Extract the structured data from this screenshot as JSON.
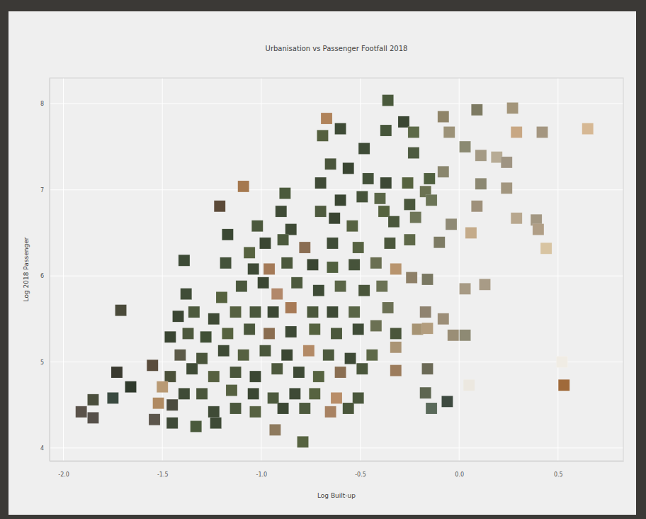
{
  "chart_data": {
    "type": "scatter",
    "title": "Urbanisation vs Passenger Footfall 2018",
    "x_label": "Log Built-up",
    "y_label": "Log 2018 Passenger",
    "x": [
      -0.36,
      -0.67,
      -0.6,
      -0.69,
      -0.37,
      -0.28,
      -0.23,
      -0.08,
      0.09,
      0.27,
      -0.05,
      0.03,
      0.29,
      0.42,
      0.65,
      -0.48,
      -0.23,
      0.11,
      0.19,
      0.24,
      -0.65,
      -0.56,
      -0.15,
      -0.08,
      -0.46,
      -0.37,
      -0.26,
      -0.7,
      -1.09,
      -0.88,
      -0.6,
      -0.49,
      -0.4,
      -0.17,
      0.11,
      0.24,
      -1.21,
      -0.9,
      -0.7,
      -0.63,
      -0.38,
      -0.25,
      -0.14,
      0.09,
      0.29,
      0.39,
      -0.04,
      0.06,
      0.4,
      -1.17,
      -1.02,
      -0.85,
      -0.54,
      -0.33,
      -0.22,
      0.44,
      -1.39,
      -1.18,
      -1.06,
      -0.98,
      -0.89,
      -0.78,
      -0.64,
      -0.51,
      -0.35,
      -0.25,
      -0.1,
      -1.04,
      -0.96,
      -0.87,
      -0.74,
      -0.64,
      -0.53,
      -0.42,
      -0.32,
      -0.24,
      -0.16,
      0.03,
      0.13,
      -1.71,
      -1.38,
      -1.2,
      -1.1,
      -0.99,
      -0.92,
      -0.82,
      -0.71,
      -0.6,
      -0.48,
      -0.39,
      -0.17,
      -0.08,
      -1.42,
      -1.34,
      -1.24,
      -1.13,
      -1.03,
      -0.94,
      -0.85,
      -0.74,
      -0.64,
      -0.53,
      -0.36,
      -1.46,
      -1.37,
      -1.28,
      -1.17,
      -1.06,
      -0.96,
      -0.85,
      -0.73,
      -0.62,
      -0.51,
      -0.42,
      -0.32,
      -0.21,
      -0.16,
      -0.03,
      -1.41,
      -1.3,
      -1.19,
      -1.09,
      -0.98,
      -0.87,
      -0.76,
      -0.66,
      -0.55,
      -0.44,
      -0.32,
      0.03,
      -1.55,
      -1.73,
      -1.66,
      -1.46,
      -1.35,
      -1.24,
      -1.13,
      -1.03,
      -0.92,
      -0.81,
      -0.71,
      -0.6,
      -0.49,
      -0.32,
      -0.16,
      0.52,
      -1.5,
      -1.39,
      -1.3,
      -1.15,
      -1.04,
      -0.94,
      -0.83,
      -0.73,
      -0.62,
      -0.51,
      -0.17,
      0.05,
      0.53,
      -1.85,
      -1.75,
      -1.91,
      -1.85,
      -1.52,
      -1.45,
      -1.24,
      -1.13,
      -1.03,
      -0.89,
      -0.78,
      -0.65,
      -0.56,
      -0.14,
      -0.06,
      -1.54,
      -1.45,
      -1.33,
      -1.23,
      -0.93,
      -0.79
    ],
    "values": [
      8.04,
      7.83,
      7.71,
      7.63,
      7.69,
      7.79,
      7.67,
      7.85,
      7.93,
      7.95,
      7.67,
      7.5,
      7.67,
      7.67,
      7.71,
      7.48,
      7.43,
      7.4,
      7.38,
      7.32,
      7.3,
      7.25,
      7.13,
      7.21,
      7.13,
      7.08,
      7.08,
      7.08,
      7.04,
      6.96,
      6.88,
      6.92,
      6.9,
      6.98,
      7.07,
      7.02,
      6.81,
      6.75,
      6.75,
      6.67,
      6.75,
      6.83,
      6.88,
      6.81,
      6.67,
      6.65,
      6.6,
      6.5,
      6.54,
      6.48,
      6.58,
      6.54,
      6.58,
      6.63,
      6.68,
      6.32,
      6.18,
      6.15,
      6.27,
      6.38,
      6.42,
      6.33,
      6.38,
      6.33,
      6.38,
      6.42,
      6.39,
      6.08,
      6.08,
      6.15,
      6.13,
      6.1,
      6.13,
      6.15,
      6.08,
      5.98,
      5.96,
      5.85,
      5.9,
      5.6,
      5.79,
      5.75,
      5.88,
      5.92,
      5.79,
      5.92,
      5.83,
      5.88,
      5.83,
      5.88,
      5.58,
      5.5,
      5.53,
      5.58,
      5.5,
      5.58,
      5.58,
      5.58,
      5.63,
      5.58,
      5.58,
      5.58,
      5.63,
      5.29,
      5.33,
      5.29,
      5.33,
      5.38,
      5.33,
      5.35,
      5.38,
      5.33,
      5.38,
      5.42,
      5.33,
      5.38,
      5.39,
      5.31,
      5.08,
      5.04,
      5.13,
      5.08,
      5.13,
      5.08,
      5.13,
      5.08,
      5.04,
      5.08,
      5.17,
      5.31,
      4.96,
      4.88,
      4.71,
      4.83,
      4.92,
      4.83,
      4.88,
      4.83,
      4.92,
      4.88,
      4.83,
      4.88,
      4.92,
      4.9,
      4.92,
      5.0,
      4.71,
      4.63,
      4.63,
      4.67,
      4.63,
      4.58,
      4.63,
      4.63,
      4.58,
      4.58,
      4.64,
      4.73,
      4.73,
      4.56,
      4.58,
      4.42,
      4.35,
      4.52,
      4.5,
      4.42,
      4.46,
      4.42,
      4.46,
      4.46,
      4.42,
      4.46,
      4.46,
      4.54,
      4.33,
      4.29,
      4.25,
      4.29,
      4.21,
      4.07
    ],
    "colors": [
      "#4a5a3c",
      "#b0835a",
      "#3e4b36",
      "#55603f",
      "#46553a",
      "#3b4733",
      "#5d6a48",
      "#8f8468",
      "#7d7a62",
      "#a3957a",
      "#9c9278",
      "#8b8a72",
      "#c8a783",
      "#a49680",
      "#d6b894",
      "#3f4c37",
      "#4d5a3f",
      "#a49a85",
      "#b7ab95",
      "#9f9482",
      "#4a553b",
      "#3a4532",
      "#50603f",
      "#8a866d",
      "#44523a",
      "#3d4935",
      "#56633f",
      "#3f4a36",
      "#a5784e",
      "#4b5a3c",
      "#3a4632",
      "#46533a",
      "#5a6647",
      "#6b7252",
      "#8c8872",
      "#a2967f",
      "#5c4a38",
      "#3f4b36",
      "#4e5a3e",
      "#3a4532",
      "#56633f",
      "#4a573c",
      "#6b7456",
      "#9e907a",
      "#b8a78e",
      "#a39782",
      "#8f8a76",
      "#c4ab8a",
      "#b09e86",
      "#3a4733",
      "#4b583c",
      "#3e4a35",
      "#566241",
      "#4a573c",
      "#6f7658",
      "#d8c4a2",
      "#3d4b36",
      "#44523a",
      "#56623f",
      "#3b4733",
      "#4c5a3d",
      "#8a6d52",
      "#3f4c37",
      "#566241",
      "#4a563b",
      "#5e6848",
      "#7d7b64",
      "#3e4a36",
      "#a47a58",
      "#4b583c",
      "#3a4632",
      "#51603f",
      "#46533a",
      "#6a6f52",
      "#b8946e",
      "#8e8068",
      "#7a7862",
      "#a79a84",
      "#a89b86",
      "#4a4a3a",
      "#3f4c37",
      "#56623f",
      "#4a573c",
      "#3b4733",
      "#b2886a",
      "#4d5a3e",
      "#3e4b36",
      "#5a6547",
      "#4a563b",
      "#6b7254",
      "#8f8370",
      "#9c8e78",
      "#3b4633",
      "#4d5a3e",
      "#3f4b36",
      "#566141",
      "#4a573c",
      "#3c4834",
      "#a77a56",
      "#4b583c",
      "#3e4a36",
      "#596546",
      "#6c7155",
      "#3a4532",
      "#4d593d",
      "#405036",
      "#56623f",
      "#4a573c",
      "#8a6d50",
      "#3d4935",
      "#566340",
      "#4b583c",
      "#3f4c37",
      "#6b7053",
      "#4a563b",
      "#a79474",
      "#b39d7e",
      "#9a8e76",
      "#5c5a48",
      "#4a553b",
      "#3f4b36",
      "#566141",
      "#4a573c",
      "#3b4733",
      "#b38a66",
      "#4d5a3e",
      "#3e4a36",
      "#5e6948",
      "#aa9474",
      "#8e8a74",
      "#5a4c3c",
      "#3a3a30",
      "#2f3a2c",
      "#4a5039",
      "#3f4b36",
      "#566040",
      "#4a563b",
      "#3b4733",
      "#4d593d",
      "#3e4a36",
      "#566340",
      "#8a6e52",
      "#4a573c",
      "#9c7c5c",
      "#6b6a56",
      "#f0ece4",
      "#b99a74",
      "#3f4b36",
      "#4a563b",
      "#566141",
      "#3b4733",
      "#4d5a3e",
      "#3e4a36",
      "#566340",
      "#b88d68",
      "#4a573c",
      "#5e6650",
      "#ece8e0",
      "#a06a3a",
      "#4a4e3c",
      "#3a4a40",
      "#5a524a",
      "#56504a",
      "#b08a62",
      "#4a4a3e",
      "#3f4b36",
      "#4a573c",
      "#566141",
      "#3b4733",
      "#4d5a3e",
      "#a88262",
      "#4a563b",
      "#5a6a5a",
      "#3e4a40",
      "#5c564c",
      "#3f4a38",
      "#4a5a3c",
      "#3e4a36",
      "#8e7a5e",
      "#566340"
    ],
    "xlim": [
      -2.07,
      0.83
    ],
    "ylim": [
      3.85,
      8.3
    ],
    "xticks": [
      {
        "value": -2,
        "label": "-2.0"
      },
      {
        "value": -1.5,
        "label": "-1.5"
      },
      {
        "value": -1,
        "label": "-1.0"
      },
      {
        "value": -0.5,
        "label": "-0.5"
      },
      {
        "value": 0,
        "label": "0.0"
      },
      {
        "value": 0.5,
        "label": "0.5"
      }
    ],
    "yticks": [
      4,
      5,
      6,
      7,
      8
    ],
    "grid": true,
    "marker": "square"
  }
}
